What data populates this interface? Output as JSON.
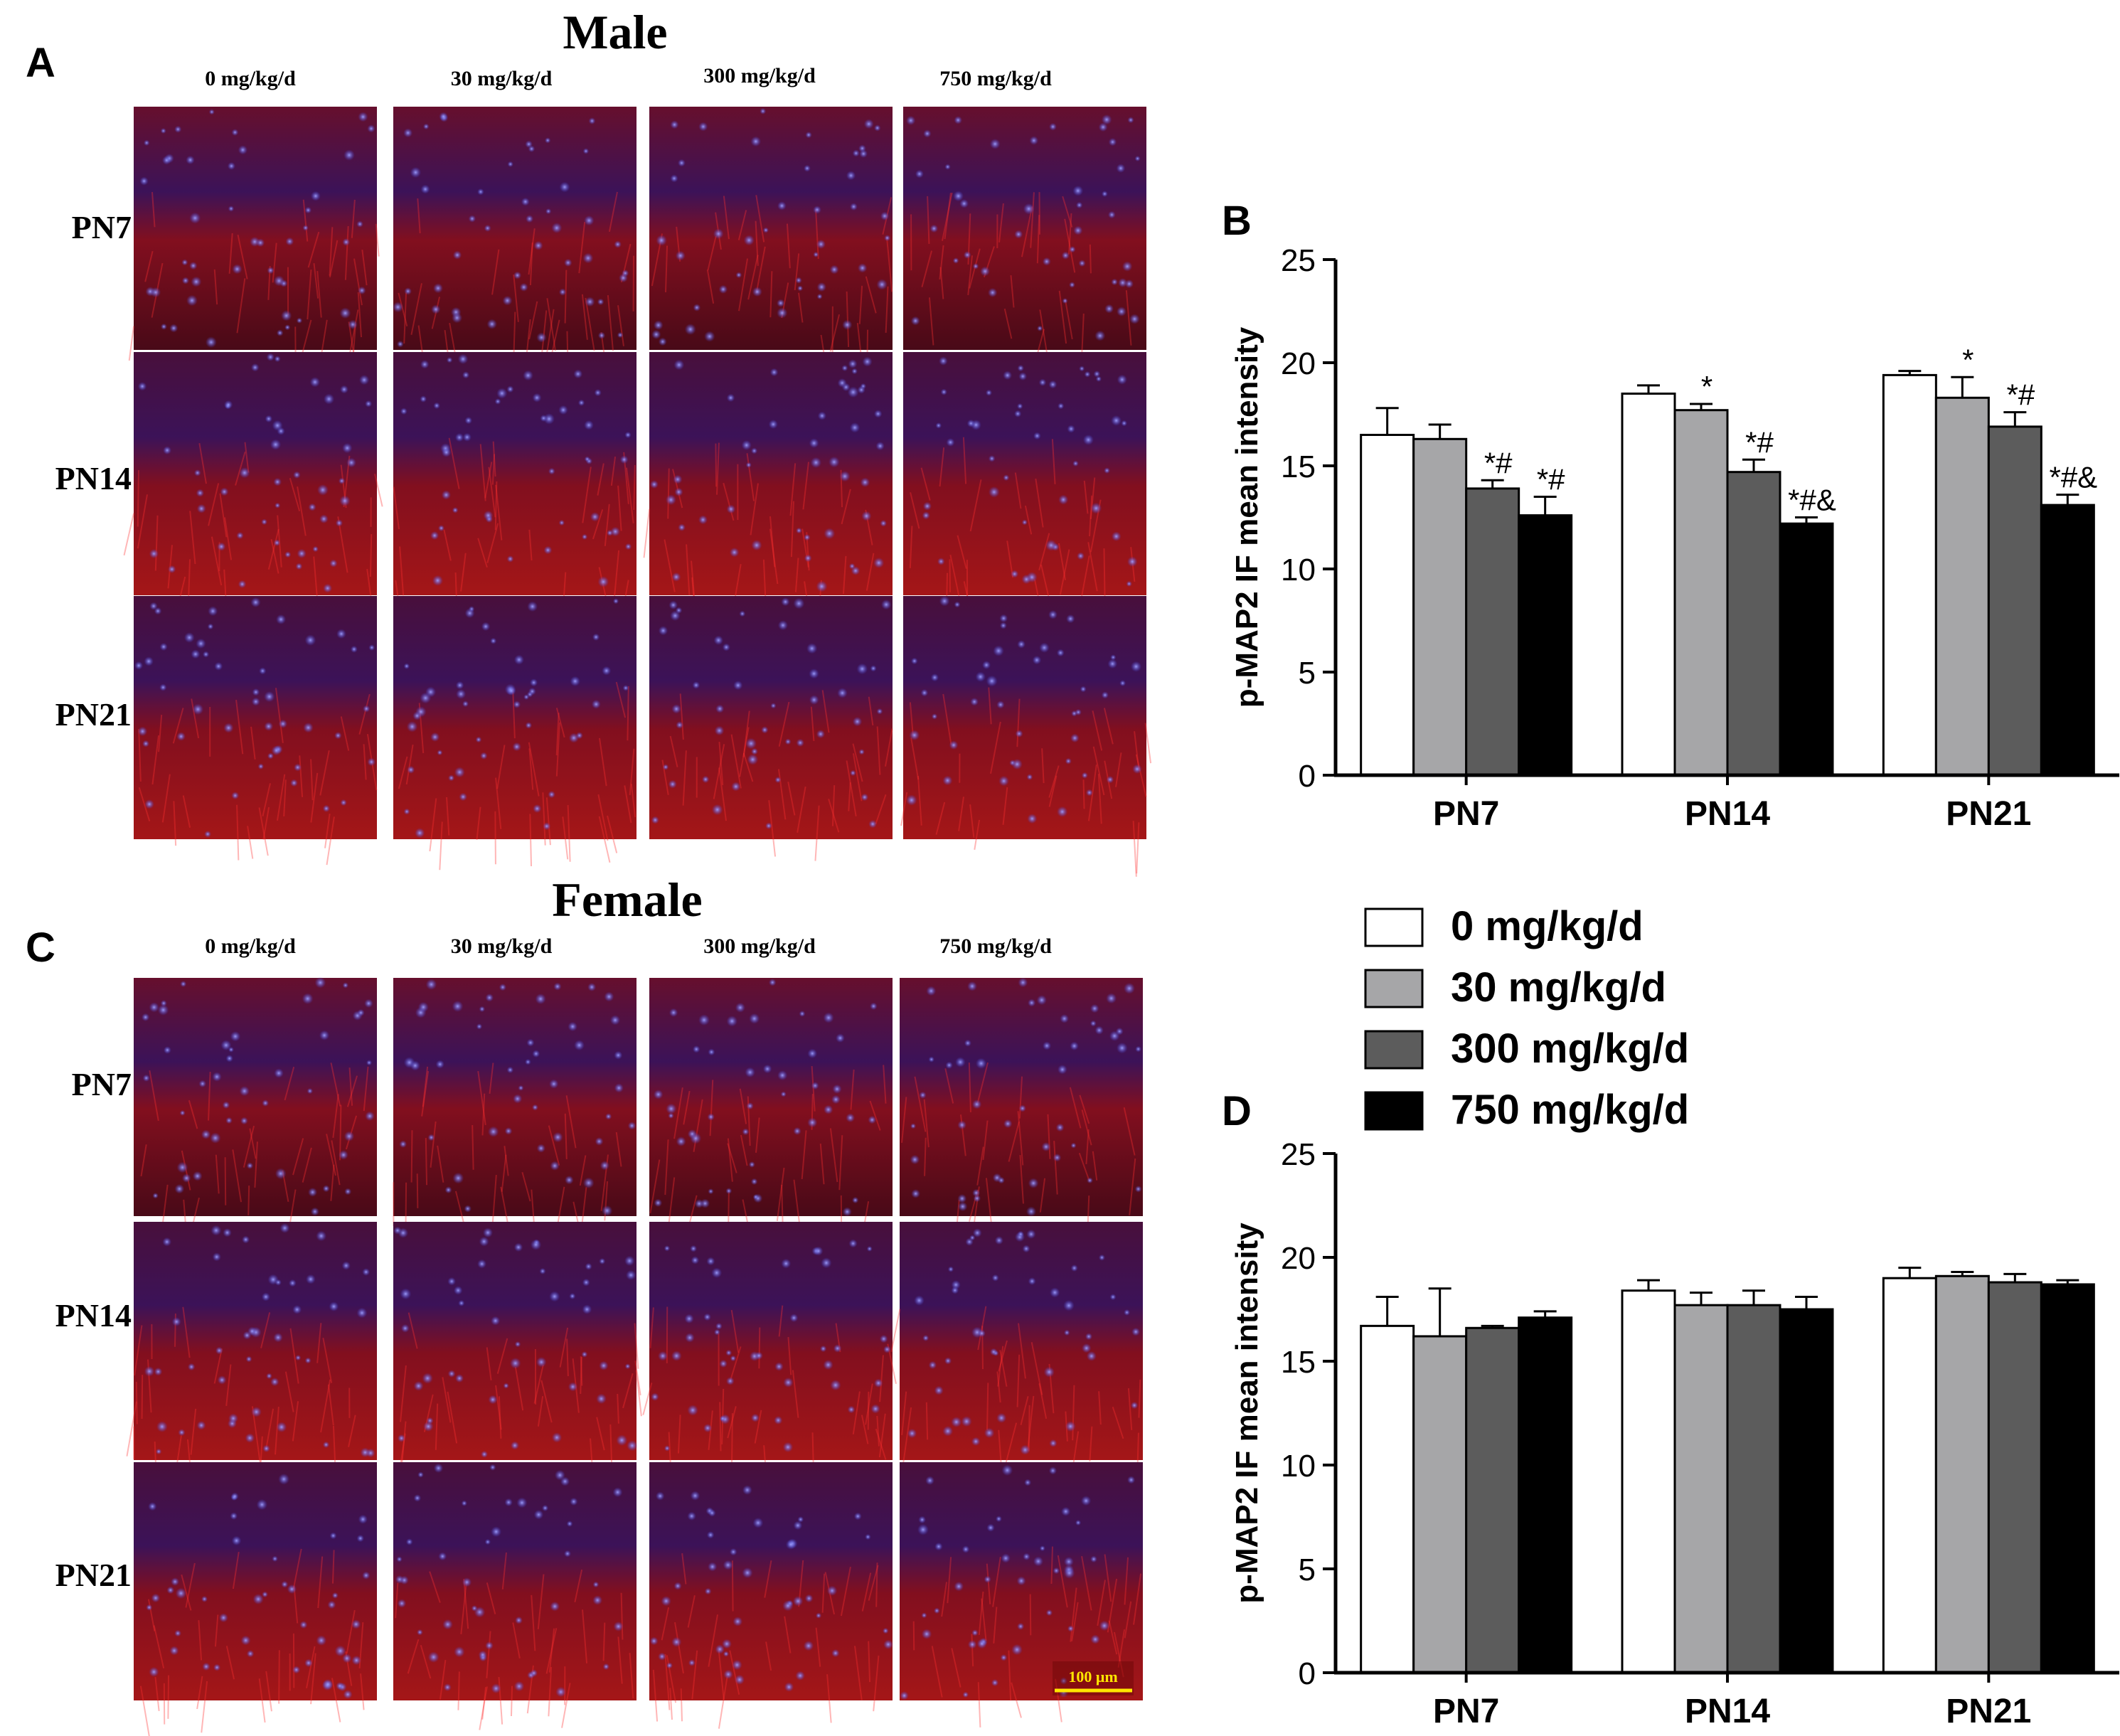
{
  "panel_letters": [
    "A",
    "B",
    "C",
    "D"
  ],
  "micrographs": [
    {
      "panel": "A",
      "title": "Male",
      "columns": [
        "0 mg/kg/d",
        "30 mg/kg/d",
        "300 mg/kg/d",
        "750 mg/kg/d"
      ],
      "rows": [
        "PN7",
        "PN14",
        "PN21"
      ]
    },
    {
      "panel": "C",
      "title": "Female",
      "columns": [
        "0 mg/kg/d",
        "30 mg/kg/d",
        "300 mg/kg/d",
        "750 mg/kg/d"
      ],
      "rows": [
        "PN7",
        "PN14",
        "PN21"
      ],
      "scale_bar": "100 μm"
    }
  ],
  "legend": {
    "entries": [
      {
        "label": "0 mg/kg/d",
        "color": "#ffffff"
      },
      {
        "label": "30 mg/kg/d",
        "color": "#a6a6a8"
      },
      {
        "label": "300 mg/kg/d",
        "color": "#5c5c5c"
      },
      {
        "label": "750 mg/kg/d",
        "color": "#000000"
      }
    ]
  },
  "chart_data": [
    {
      "panel": "B",
      "type": "bar",
      "categories": [
        "PN7",
        "PN14",
        "PN21"
      ],
      "ylabel": "p-MAP2 IF mean intensity",
      "ylim": [
        0,
        25
      ],
      "yticks": [
        0,
        5,
        10,
        15,
        20,
        25
      ],
      "series": [
        {
          "name": "0 mg/kg/d",
          "color": "#ffffff",
          "values": [
            16.5,
            18.5,
            19.4
          ],
          "errors": [
            1.3,
            0.4,
            0.2
          ],
          "annotations": [
            "",
            "",
            ""
          ]
        },
        {
          "name": "30 mg/kg/d",
          "color": "#a6a6a8",
          "values": [
            16.3,
            17.7,
            18.3
          ],
          "errors": [
            0.7,
            0.3,
            1.0
          ],
          "annotations": [
            "",
            "*",
            "*"
          ]
        },
        {
          "name": "300 mg/kg/d",
          "color": "#5c5c5c",
          "values": [
            13.9,
            14.7,
            16.9
          ],
          "errors": [
            0.4,
            0.6,
            0.7
          ],
          "annotations": [
            "*#",
            "*#",
            "*#"
          ]
        },
        {
          "name": "750 mg/kg/d",
          "color": "#000000",
          "values": [
            12.6,
            12.2,
            13.1
          ],
          "errors": [
            0.9,
            0.3,
            0.5
          ],
          "annotations": [
            "*#",
            "*#&",
            "*#&"
          ]
        }
      ]
    },
    {
      "panel": "D",
      "type": "bar",
      "categories": [
        "PN7",
        "PN14",
        "PN21"
      ],
      "ylabel": "p-MAP2 IF mean intensity",
      "ylim": [
        0,
        25
      ],
      "yticks": [
        0,
        5,
        10,
        15,
        20,
        25
      ],
      "series": [
        {
          "name": "0 mg/kg/d",
          "color": "#ffffff",
          "values": [
            16.7,
            18.4,
            19.0
          ],
          "errors": [
            1.4,
            0.5,
            0.5
          ],
          "annotations": [
            "",
            "",
            ""
          ]
        },
        {
          "name": "30 mg/kg/d",
          "color": "#a6a6a8",
          "values": [
            16.2,
            17.7,
            19.1
          ],
          "errors": [
            2.3,
            0.6,
            0.2
          ],
          "annotations": [
            "",
            "",
            ""
          ]
        },
        {
          "name": "300 mg/kg/d",
          "color": "#5c5c5c",
          "values": [
            16.6,
            17.7,
            18.8
          ],
          "errors": [
            0.1,
            0.7,
            0.4
          ],
          "annotations": [
            "",
            "",
            ""
          ]
        },
        {
          "name": "750 mg/kg/d",
          "color": "#000000",
          "values": [
            17.1,
            17.5,
            18.7
          ],
          "errors": [
            0.3,
            0.6,
            0.2
          ],
          "annotations": [
            "",
            "",
            ""
          ]
        }
      ]
    }
  ]
}
